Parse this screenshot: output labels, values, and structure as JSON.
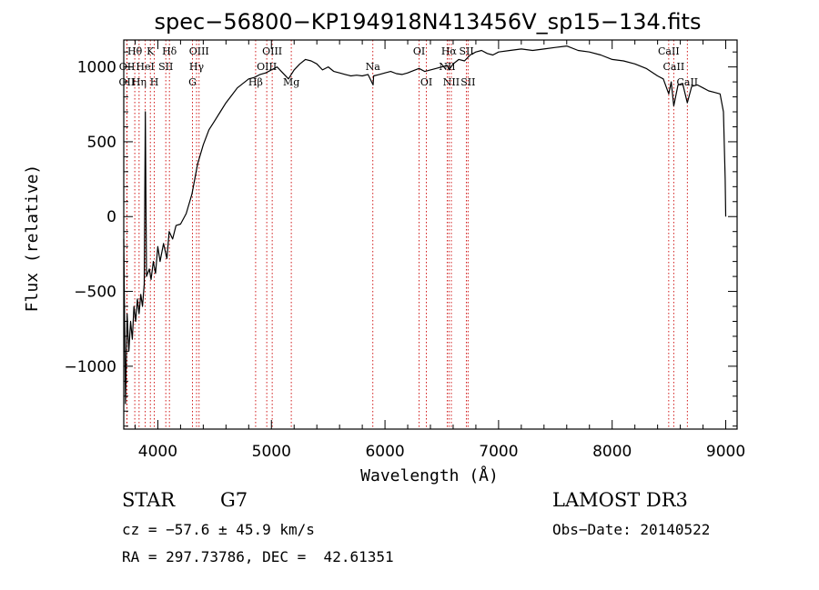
{
  "chart_data": {
    "type": "line",
    "title": "spec−56800−KP194918N413456V_sp15−134.fits",
    "xlabel": "Wavelength (Å)",
    "ylabel": "Flux (relative)",
    "xlim": [
      3700,
      9100
    ],
    "ylim": [
      -1420,
      1180
    ],
    "xticks": [
      4000,
      5000,
      6000,
      7000,
      8000,
      9000
    ],
    "xtick_labels": [
      "4000",
      "5000",
      "6000",
      "7000",
      "8000",
      "9000"
    ],
    "yticks": [
      -1000,
      -500,
      0,
      500,
      1000
    ],
    "ytick_labels": [
      "−1000",
      "−500",
      "0",
      "500",
      "1000"
    ],
    "series": [
      {
        "name": "flux",
        "x": [
          3700,
          3715,
          3730,
          3745,
          3760,
          3775,
          3790,
          3805,
          3820,
          3835,
          3850,
          3865,
          3880,
          3890,
          3900,
          3910,
          3925,
          3940,
          3960,
          3980,
          4000,
          4020,
          4050,
          4080,
          4100,
          4130,
          4160,
          4200,
          4250,
          4300,
          4350,
          4400,
          4450,
          4500,
          4550,
          4600,
          4650,
          4700,
          4750,
          4800,
          4850,
          4900,
          4950,
          5000,
          5050,
          5100,
          5150,
          5200,
          5250,
          5300,
          5350,
          5400,
          5450,
          5500,
          5550,
          5600,
          5650,
          5700,
          5750,
          5800,
          5850,
          5895,
          5900,
          5950,
          6000,
          6050,
          6100,
          6150,
          6200,
          6250,
          6300,
          6350,
          6400,
          6450,
          6500,
          6550,
          6563,
          6600,
          6650,
          6700,
          6750,
          6800,
          6850,
          6900,
          6950,
          7000,
          7100,
          7200,
          7300,
          7400,
          7500,
          7600,
          7700,
          7800,
          7900,
          8000,
          8100,
          8200,
          8300,
          8400,
          8450,
          8498,
          8520,
          8542,
          8580,
          8620,
          8662,
          8700,
          8750,
          8800,
          8850,
          8900,
          8950,
          8980,
          8995,
          9000
        ],
        "values": [
          -150,
          -1250,
          -650,
          -900,
          -700,
          -820,
          -600,
          -700,
          -550,
          -650,
          -520,
          -600,
          -450,
          700,
          -400,
          -380,
          -350,
          -420,
          -300,
          -380,
          -200,
          -300,
          -180,
          -280,
          -100,
          -150,
          -60,
          -50,
          20,
          150,
          350,
          480,
          580,
          640,
          700,
          760,
          810,
          860,
          890,
          920,
          930,
          950,
          960,
          980,
          1000,
          960,
          920,
          980,
          1020,
          1050,
          1040,
          1020,
          980,
          1000,
          970,
          960,
          950,
          940,
          945,
          940,
          950,
          880,
          940,
          950,
          960,
          970,
          955,
          950,
          960,
          975,
          990,
          970,
          980,
          990,
          1000,
          1010,
          980,
          1020,
          1050,
          1040,
          1080,
          1100,
          1110,
          1090,
          1080,
          1100,
          1110,
          1120,
          1110,
          1120,
          1130,
          1140,
          1110,
          1100,
          1080,
          1050,
          1040,
          1020,
          990,
          940,
          920,
          820,
          900,
          740,
          880,
          890,
          760,
          870,
          880,
          860,
          840,
          830,
          820,
          700,
          250,
          0
        ]
      }
    ],
    "grid": false,
    "lines": [
      {
        "name": "Hθ",
        "x": 3797,
        "row": 0
      },
      {
        "name": "Hη",
        "x": 3835,
        "row": 2
      },
      {
        "name": "OII",
        "x": 3727,
        "row": 2
      },
      {
        "name": "OII",
        "x": 3729,
        "row": 1
      },
      {
        "name": "K",
        "x": 3934,
        "row": 0
      },
      {
        "name": "H",
        "x": 3969,
        "row": 2
      },
      {
        "name": "HeI",
        "x": 3889,
        "row": 1
      },
      {
        "name": "SII",
        "x": 4070,
        "row": 1
      },
      {
        "name": "Hδ",
        "x": 4102,
        "row": 0
      },
      {
        "name": "OIII",
        "x": 4363,
        "row": 0
      },
      {
        "name": "Hγ",
        "x": 4341,
        "row": 1
      },
      {
        "name": "G",
        "x": 4305,
        "row": 2
      },
      {
        "name": "Hβ",
        "x": 4861,
        "row": 2
      },
      {
        "name": "OIII",
        "x": 5007,
        "row": 0
      },
      {
        "name": "OIII",
        "x": 4959,
        "row": 1
      },
      {
        "name": "Mg",
        "x": 5175,
        "row": 2
      },
      {
        "name": "Na",
        "x": 5893,
        "row": 1
      },
      {
        "name": "OI",
        "x": 6300,
        "row": 0
      },
      {
        "name": "OI",
        "x": 6364,
        "row": 2
      },
      {
        "name": "Hα",
        "x": 6563,
        "row": 0
      },
      {
        "name": "NII",
        "x": 6548,
        "row": 1
      },
      {
        "name": "NII",
        "x": 6584,
        "row": 2
      },
      {
        "name": "SII",
        "x": 6717,
        "row": 0
      },
      {
        "name": "SII",
        "x": 6731,
        "row": 2
      },
      {
        "name": "CaII",
        "x": 8498,
        "row": 0
      },
      {
        "name": "CaII",
        "x": 8542,
        "row": 1
      },
      {
        "name": "CaII",
        "x": 8662,
        "row": 2
      }
    ]
  },
  "info": {
    "object_type": "STAR",
    "subclass": "G7",
    "survey": "LAMOST DR3",
    "redshift": "cz = −57.6 ± 45.9 km/s",
    "obs_date": "Obs−Date: 20140522",
    "coords": "RA = 297.73786, DEC =  42.61351"
  },
  "colors": {
    "spectrum": "#000000",
    "line_marker": "#cc0000",
    "background": "#ffffff"
  }
}
